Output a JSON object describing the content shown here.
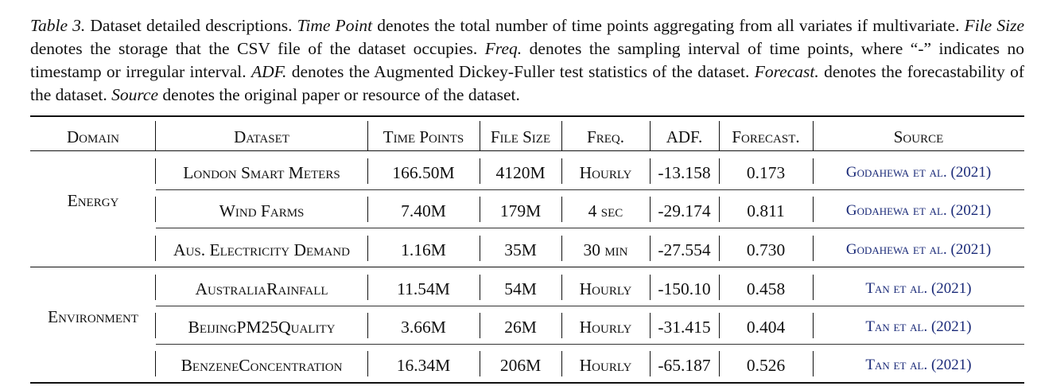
{
  "caption": {
    "label": "Table 3.",
    "s1": " Dataset detailed descriptions. ",
    "t_timepoint": "Time Point",
    "s2": " denotes the total number of time points aggregating from all variates if multivariate. ",
    "t_filesize": "File Size",
    "s3": " denotes the storage that the CSV file of the dataset occupies. ",
    "t_freq": "Freq.",
    "s4": " denotes the sampling interval of time points, where “-” indicates no timestamp or irregular interval. ",
    "t_adf": "ADF.",
    "s5": " denotes the Augmented Dickey-Fuller test statistics of the dataset. ",
    "t_forecast": "Forecast.",
    "s6": " denotes the forecastability of the dataset. ",
    "t_source": "Source",
    "s7": " denotes the original paper or resource of the dataset."
  },
  "headers": {
    "domain": "Domain",
    "dataset": "Dataset",
    "timepoints": "Time Points",
    "filesize": "File Size",
    "freq": "Freq.",
    "adf": "ADF.",
    "forecast": "Forecast.",
    "source": "Source"
  },
  "domains": [
    "Energy",
    "Environment"
  ],
  "rows": [
    {
      "dataset": "London Smart Meters",
      "timepoints": "166.50M",
      "filesize": "4120M",
      "freq": "Hourly",
      "adf": "-13.158",
      "forecast": "0.173",
      "source": "Godahewa et al. (2021)"
    },
    {
      "dataset": "Wind Farms",
      "timepoints": "7.40M",
      "filesize": "179M",
      "freq": "4 sec",
      "adf": "-29.174",
      "forecast": "0.811",
      "source": "Godahewa et al. (2021)"
    },
    {
      "dataset": "Aus. Electricity Demand",
      "timepoints": "1.16M",
      "filesize": "35M",
      "freq": "30 min",
      "adf": "-27.554",
      "forecast": "0.730",
      "source": "Godahewa et al. (2021)"
    },
    {
      "dataset": "AustraliaRainfall",
      "timepoints": "11.54M",
      "filesize": "54M",
      "freq": "Hourly",
      "adf": "-150.10",
      "forecast": "0.458",
      "source": "Tan et al. (2021)"
    },
    {
      "dataset": "BeijingPM25Quality",
      "timepoints": "3.66M",
      "filesize": "26M",
      "freq": "Hourly",
      "adf": "-31.415",
      "forecast": "0.404",
      "source": "Tan et al. (2021)"
    },
    {
      "dataset": "BenzeneConcentration",
      "timepoints": "16.34M",
      "filesize": "206M",
      "freq": "Hourly",
      "adf": "-65.187",
      "forecast": "0.526",
      "source": "Tan et al. (2021)"
    }
  ]
}
